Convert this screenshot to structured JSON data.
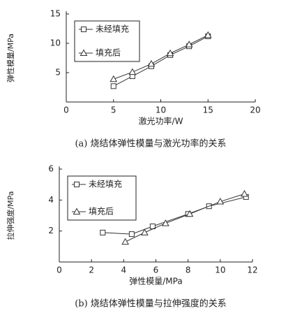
{
  "chart_data": [
    {
      "type": "line",
      "title": "(a) 烧结体弹性模量与激光功率的关系",
      "x_label": "激光功率/W",
      "y_label": "弹性模量/MPa",
      "xlim": [
        0,
        20
      ],
      "xticks": [
        0,
        5,
        10,
        15,
        20
      ],
      "ylim": [
        0,
        15
      ],
      "yticks": [
        5,
        10,
        15
      ],
      "legend": "upper left",
      "series": [
        {
          "name": "未经填充",
          "marker": "square",
          "color": "#333",
          "x": [
            5,
            7,
            9,
            11,
            13,
            15
          ],
          "values": [
            2.7,
            4.4,
            6.1,
            8.0,
            9.5,
            11.2
          ]
        },
        {
          "name": "填充后",
          "marker": "triangle",
          "color": "#333",
          "x": [
            5,
            7,
            9,
            11,
            13,
            15
          ],
          "values": [
            3.9,
            5.1,
            6.5,
            8.3,
            9.8,
            11.4
          ]
        }
      ]
    },
    {
      "type": "line",
      "title": "(b) 烧结体弹性模量与拉伸强度的关系",
      "x_label": "弹性模量/MPa",
      "y_label": "拉伸强度/MPa",
      "xlim": [
        0,
        12
      ],
      "xticks": [
        0,
        2,
        4,
        6,
        8,
        10,
        12
      ],
      "ylim": [
        0,
        6
      ],
      "yticks": [
        2,
        4,
        6
      ],
      "legend": "upper left",
      "series": [
        {
          "name": "未经填充",
          "marker": "square",
          "color": "#333",
          "x": [
            2.7,
            4.5,
            5.8,
            8.0,
            9.3,
            11.6
          ],
          "values": [
            1.9,
            1.8,
            2.3,
            3.1,
            3.6,
            4.2
          ]
        },
        {
          "name": "填充后",
          "marker": "triangle",
          "color": "#333",
          "x": [
            4.1,
            5.3,
            6.6,
            8.1,
            10.0,
            11.5
          ],
          "values": [
            1.3,
            1.9,
            2.5,
            3.1,
            3.9,
            4.4
          ]
        }
      ]
    }
  ]
}
